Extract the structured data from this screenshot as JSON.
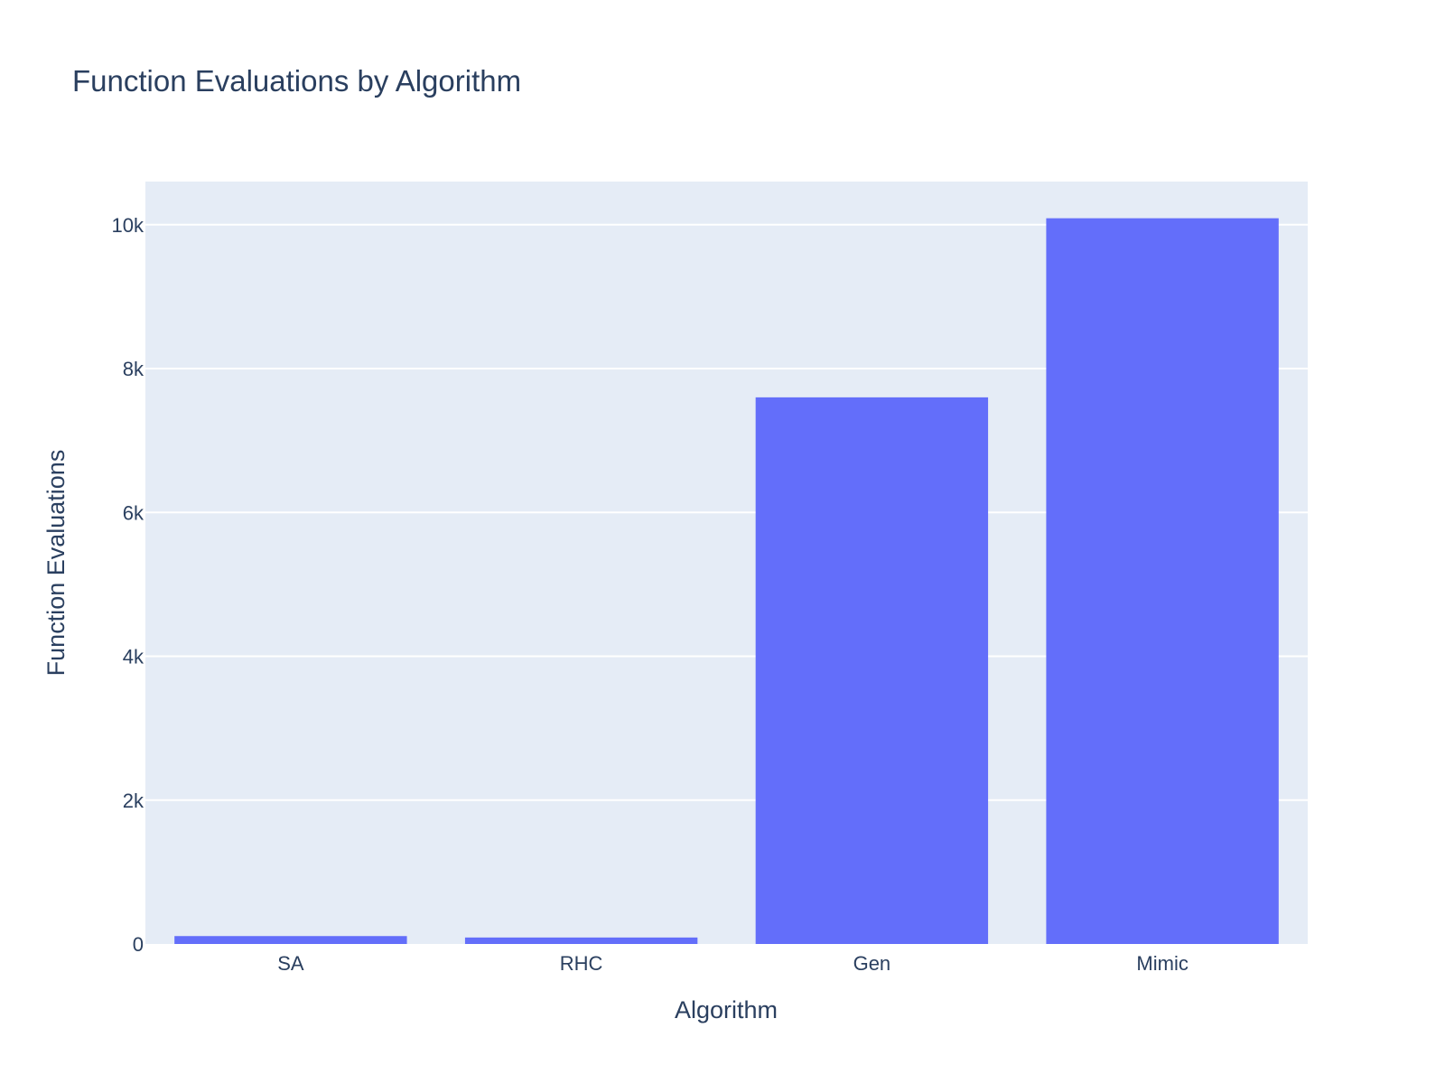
{
  "chart_data": {
    "type": "bar",
    "title": "Function Evaluations by Algorithm",
    "xlabel": "Algorithm",
    "ylabel": "Function Evaluations",
    "categories": [
      "SA",
      "RHC",
      "Gen",
      "Mimic"
    ],
    "values": [
      110,
      90,
      7600,
      10090
    ],
    "ylim": [
      0,
      10600
    ],
    "yticks": [
      0,
      2000,
      4000,
      6000,
      8000,
      10000
    ],
    "ytick_labels": [
      "0",
      "2k",
      "4k",
      "6k",
      "8k",
      "10k"
    ],
    "grid": true,
    "legend": "none",
    "colors": {
      "bar": "#636efa",
      "plot_bg": "#e5ecf6",
      "grid": "#ffffff",
      "text": "#2a3f5f"
    }
  }
}
